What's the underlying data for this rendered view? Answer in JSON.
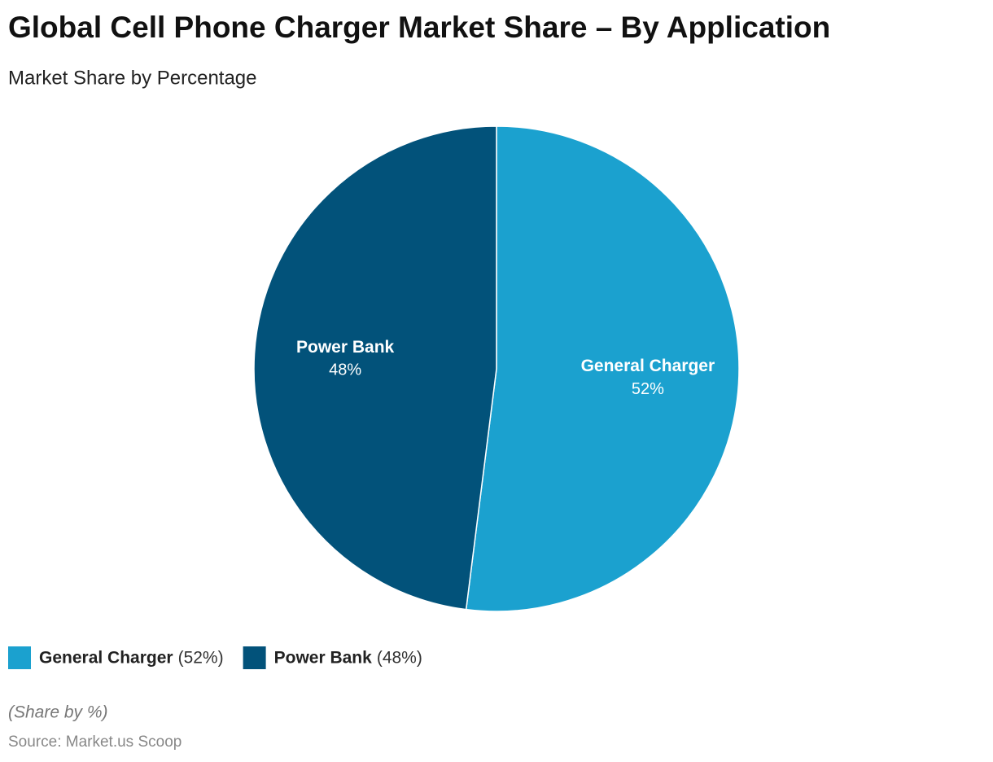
{
  "chart_data": {
    "type": "pie",
    "title": "Global Cell Phone Charger Market Share – By Application",
    "subtitle": "Market Share by Percentage",
    "categories": [
      "General Charger",
      "Power Bank"
    ],
    "values": [
      52,
      48
    ],
    "value_labels": [
      "52%",
      "48%"
    ],
    "legend_value_labels": [
      "(52%)",
      "(48%)"
    ],
    "colors": [
      "#1ba1cf",
      "#02527a"
    ],
    "note": "(Share by %)",
    "source": "Source: Market.us Scoop"
  }
}
